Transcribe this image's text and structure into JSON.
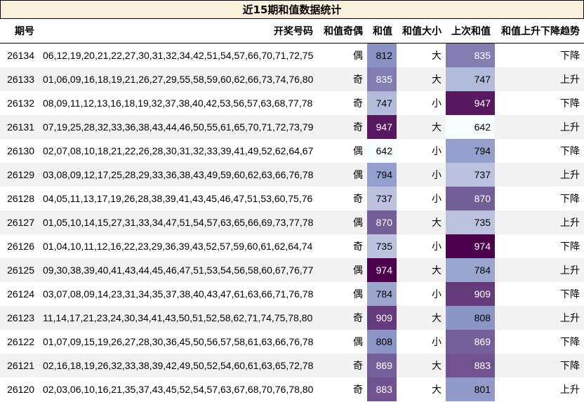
{
  "title": "近15期和值数据统计",
  "headers": [
    "期号",
    "开奖号码",
    "和值奇偶",
    "和值大小",
    "上次和值",
    "和值上升下降趋势"
  ],
  "headers_order": [
    "期号",
    "开奖号码",
    "和值奇偶",
    "和值",
    "和值大小",
    "上次和值",
    "和值上升下降趋势"
  ],
  "rows": [
    {
      "period": "26134",
      "numbers": "06,12,19,20,21,22,27,30,31,32,34,42,51,54,57,66,70,71,72,75",
      "parity": "偶",
      "sum": "812",
      "size": "大",
      "prev_sum": "835",
      "trend": "下降"
    },
    {
      "period": "26133",
      "numbers": "01,06,09,16,18,19,21,26,27,29,55,58,59,60,62,66,73,74,76,80",
      "parity": "奇",
      "sum": "835",
      "size": "大",
      "prev_sum": "747",
      "trend": "上升"
    },
    {
      "period": "26132",
      "numbers": "08,09,11,12,13,16,18,19,32,37,38,40,42,53,56,57,63,68,77,78",
      "parity": "奇",
      "sum": "747",
      "size": "小",
      "prev_sum": "947",
      "trend": "下降"
    },
    {
      "period": "26131",
      "numbers": "07,19,25,28,32,33,36,38,43,44,46,50,55,61,65,70,71,72,73,79",
      "parity": "奇",
      "sum": "947",
      "size": "大",
      "prev_sum": "642",
      "trend": "上升"
    },
    {
      "period": "26130",
      "numbers": "02,07,08,10,18,21,22,26,28,30,31,32,33,39,41,49,52,62,64,67",
      "parity": "偶",
      "sum": "642",
      "size": "小",
      "prev_sum": "794",
      "trend": "下降"
    },
    {
      "period": "26129",
      "numbers": "03,08,09,12,17,25,28,29,33,36,38,43,49,59,60,62,63,66,76,78",
      "parity": "偶",
      "sum": "794",
      "size": "小",
      "prev_sum": "737",
      "trend": "上升"
    },
    {
      "period": "26128",
      "numbers": "04,05,11,13,17,19,26,28,38,39,41,43,45,46,47,51,53,60,75,76",
      "parity": "奇",
      "sum": "737",
      "size": "小",
      "prev_sum": "870",
      "trend": "下降"
    },
    {
      "period": "26127",
      "numbers": "01,05,10,14,15,27,31,33,34,47,51,54,57,63,65,66,69,73,77,78",
      "parity": "偶",
      "sum": "870",
      "size": "大",
      "prev_sum": "735",
      "trend": "上升"
    },
    {
      "period": "26126",
      "numbers": "01,04,10,11,12,16,22,23,29,36,39,43,52,57,59,60,61,62,64,74",
      "parity": "奇",
      "sum": "735",
      "size": "小",
      "prev_sum": "974",
      "trend": "下降"
    },
    {
      "period": "26125",
      "numbers": "09,30,38,39,40,41,43,44,45,46,47,51,53,54,56,58,60,67,76,77",
      "parity": "偶",
      "sum": "974",
      "size": "大",
      "prev_sum": "784",
      "trend": "上升"
    },
    {
      "period": "26124",
      "numbers": "03,07,08,09,14,23,31,34,35,37,38,40,43,47,61,63,66,71,76,78",
      "parity": "偶",
      "sum": "784",
      "size": "小",
      "prev_sum": "909",
      "trend": "下降"
    },
    {
      "period": "26123",
      "numbers": "11,14,17,21,23,24,30,34,41,43,50,51,52,58,62,71,74,75,78,80",
      "parity": "奇",
      "sum": "909",
      "size": "大",
      "prev_sum": "808",
      "trend": "上升"
    },
    {
      "period": "26122",
      "numbers": "01,07,09,15,19,26,27,28,30,36,45,50,56,57,58,61,63,66,76,78",
      "parity": "偶",
      "sum": "808",
      "size": "小",
      "prev_sum": "869",
      "trend": "下降"
    },
    {
      "period": "26121",
      "numbers": "02,16,18,19,26,32,33,38,39,42,49,50,52,54,60,61,63,65,72,78",
      "parity": "奇",
      "sum": "869",
      "size": "大",
      "prev_sum": "883",
      "trend": "下降"
    },
    {
      "period": "26120",
      "numbers": "02,03,06,10,16,21,35,37,43,45,52,54,57,63,67,68,70,76,78,80",
      "parity": "奇",
      "sum": "883",
      "size": "大",
      "prev_sum": "801",
      "trend": "上升"
    }
  ],
  "heat_scale": {
    "min": 642,
    "max": 974,
    "low_color": "#f7fcfd",
    "mid_color": "#8c96c6",
    "high_color": "#4d004b"
  }
}
